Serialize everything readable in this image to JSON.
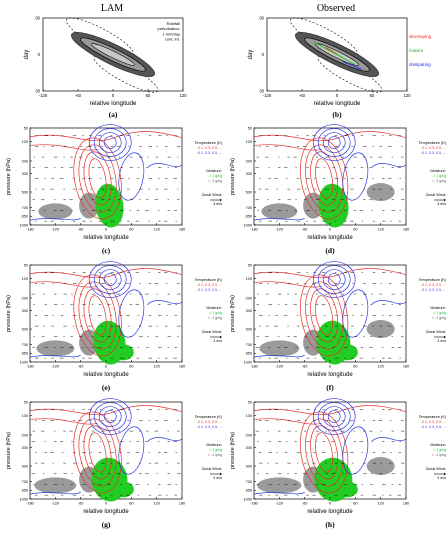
{
  "headers": {
    "left": "LAM",
    "right": "Observed"
  },
  "top_legend": {
    "left": [
      "Rainfall",
      "perturbation:",
      "1 mm/day",
      "cont. int."
    ],
    "right": [
      "developing",
      "mature",
      "dissipating"
    ],
    "right_colors": [
      "#e8302a",
      "#2aa52a",
      "#2a2ae8"
    ]
  },
  "colors": {
    "red": "#e8302a",
    "blue": "#2a3ae8",
    "green": "#22cc22",
    "gray": "#9a9a9a"
  },
  "panel_legend": {
    "temp_title": "Temperature (K)",
    "temp_pos": "-0.1, 0.3, 0.5, ...",
    "temp_neg": "-0.1, 0.3, 0.5, ...",
    "moist_title": "Moisture:",
    "moist_pos": "> 1 g/kg",
    "moist_neg": "< -1 g/kg",
    "wind_title": "Zonal Wind:",
    "wind_scale": "3 m/s"
  },
  "chart_data": [
    {
      "panel": "a",
      "type": "contour",
      "label": "(a)",
      "xlabel": "relative longitude",
      "ylabel": "day",
      "x_ticks": [
        "-120",
        "-60",
        "0",
        "60",
        "120"
      ],
      "y_ticks": [
        "-30",
        "0",
        "30"
      ],
      "xlim": [
        -120,
        120
      ],
      "ylim": [
        -30,
        30
      ]
    },
    {
      "panel": "b",
      "type": "contour",
      "label": "(b)",
      "xlabel": "relative longitude",
      "ylabel": "day",
      "x_ticks": [
        "-120",
        "-60",
        "0",
        "60",
        "120"
      ],
      "y_ticks": [
        "-30",
        "0",
        "30"
      ],
      "xlim": [
        -120,
        120
      ],
      "ylim": [
        -30,
        30
      ]
    },
    {
      "panel": "c",
      "type": "contour",
      "label": "(c)",
      "xlabel": "relative longitude",
      "ylabel": "pressure (hPa)",
      "x_ticks": [
        "-180",
        "-120",
        "-60",
        "0",
        "60",
        "120",
        "180"
      ],
      "y_ticks": [
        "50",
        "100",
        "200",
        "300",
        "500",
        "700",
        "850",
        "1000"
      ]
    },
    {
      "panel": "d",
      "type": "contour",
      "label": "(d)",
      "xlabel": "relative longitude",
      "ylabel": "pressure (hPa)",
      "x_ticks": [
        "-180",
        "-120",
        "-60",
        "0",
        "60",
        "120",
        "180"
      ],
      "y_ticks": [
        "50",
        "100",
        "200",
        "300",
        "500",
        "700",
        "850",
        "1000"
      ]
    },
    {
      "panel": "e",
      "type": "contour",
      "label": "(e)",
      "xlabel": "relative longitude",
      "ylabel": "pressure (hPa)",
      "x_ticks": [
        "-180",
        "-120",
        "-60",
        "0",
        "60",
        "120",
        "180"
      ],
      "y_ticks": [
        "50",
        "100",
        "200",
        "300",
        "500",
        "700",
        "850",
        "1000"
      ]
    },
    {
      "panel": "f",
      "type": "contour",
      "label": "(f)",
      "xlabel": "relative longitude",
      "ylabel": "pressure (hPa)",
      "x_ticks": [
        "-180",
        "-120",
        "-60",
        "0",
        "60",
        "120",
        "180"
      ],
      "y_ticks": [
        "50",
        "100",
        "200",
        "300",
        "500",
        "700",
        "850",
        "1000"
      ]
    },
    {
      "panel": "g",
      "type": "contour",
      "label": "(g)",
      "xlabel": "relative longitude",
      "ylabel": "pressure (hPa)",
      "x_ticks": [
        "-180",
        "-120",
        "-60",
        "0",
        "60",
        "120",
        "180"
      ],
      "y_ticks": [
        "50",
        "100",
        "200",
        "300",
        "500",
        "700",
        "850",
        "1000"
      ]
    },
    {
      "panel": "h",
      "type": "contour",
      "label": "(h)",
      "xlabel": "relative longitude",
      "ylabel": "pressure (hPa)",
      "x_ticks": [
        "-180",
        "-120",
        "-60",
        "0",
        "60",
        "120",
        "180"
      ],
      "y_ticks": [
        "50",
        "100",
        "200",
        "300",
        "500",
        "700",
        "850",
        "1000"
      ]
    }
  ]
}
